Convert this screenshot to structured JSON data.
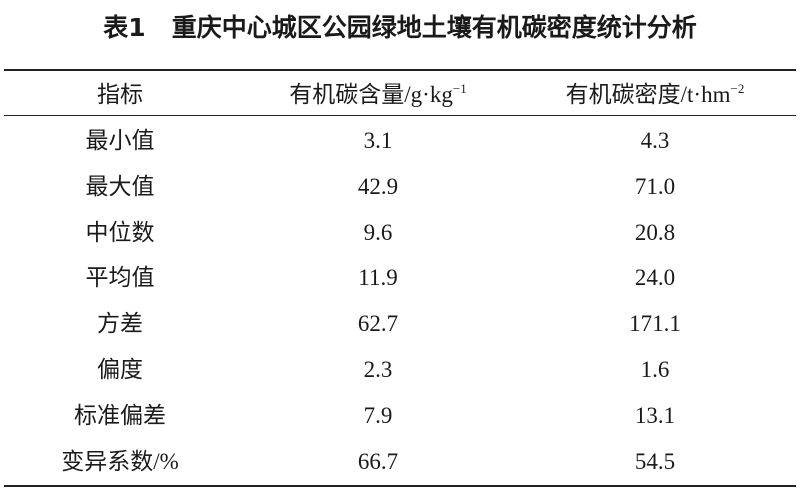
{
  "caption": {
    "label": "表1",
    "title": "重庆中心城区公园绿地土壤有机碳密度统计分析"
  },
  "table": {
    "header": [
      {
        "text": "指标"
      },
      {
        "text": "有机碳含量/g·kg",
        "sup": "−1"
      },
      {
        "text": "有机碳密度/t·hm",
        "sup": "−2"
      }
    ],
    "rows": [
      [
        "最小值",
        "3.1",
        "4.3"
      ],
      [
        "最大值",
        "42.9",
        "71.0"
      ],
      [
        "中位数",
        "9.6",
        "20.8"
      ],
      [
        "平均值",
        "11.9",
        "24.0"
      ],
      [
        "方差",
        "62.7",
        "171.1"
      ],
      [
        "偏度",
        "2.3",
        "1.6"
      ],
      [
        "标准偏差",
        "7.9",
        "13.1"
      ],
      [
        "变异系数/%",
        "66.7",
        "54.5"
      ]
    ]
  }
}
